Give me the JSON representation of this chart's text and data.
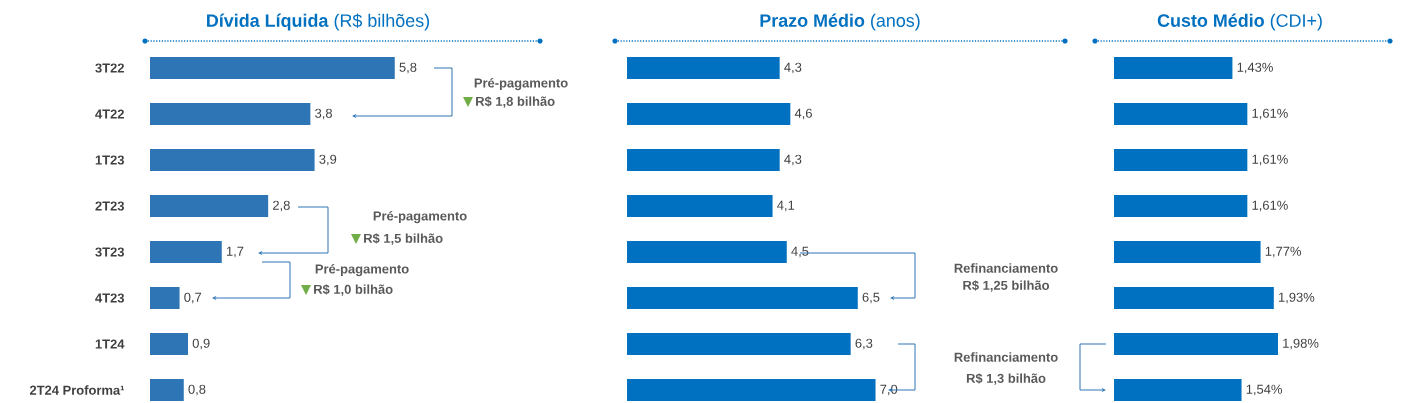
{
  "chart_data": [
    {
      "type": "bar",
      "orientation": "horizontal",
      "title": "**Dívida Líquida** (R$ bilhões)",
      "categories": [
        "3T22",
        "4T22",
        "1T23",
        "2T23",
        "3T23",
        "4T23",
        "1T24",
        "2T24 Proforma¹"
      ],
      "values": [
        5.8,
        3.8,
        3.9,
        2.8,
        1.7,
        0.7,
        0.9,
        0.8
      ],
      "value_labels": [
        "5,8",
        "3,8",
        "3,9",
        "2,8",
        "1,7",
        "0,7",
        "0,9",
        "0,8"
      ],
      "color": "#2e75b6",
      "tick_labels": "y",
      "annotations": [
        "Pré-pagamento",
        "R$ 1,8 bilhão",
        "Pré-pagamento",
        "R$ 1,5 bilhão",
        "Pré-pagamento",
        "R$ 1,0 bilhão"
      ]
    },
    {
      "type": "bar",
      "orientation": "horizontal",
      "title": "**Prazo Médio** (anos)",
      "categories": [
        null,
        null,
        null,
        null,
        null,
        null,
        null,
        null
      ],
      "values": [
        4.3,
        4.6,
        4.3,
        4.1,
        4.5,
        6.5,
        6.3,
        7.0
      ],
      "value_labels": [
        "4,3",
        "4,6",
        "4,3",
        "4,1",
        "4,5",
        "6,5",
        "6,3",
        "7,0"
      ],
      "color": "#0070c0",
      "annotations": [
        "Refinanciamento",
        "R$ 1,25 bilhão",
        "Refinanciamento",
        "R$ 1,3 bilhão"
      ]
    },
    {
      "type": "bar",
      "orientation": "horizontal",
      "title": "**Custo Médio** (CDI+)",
      "categories": [
        null,
        null,
        null,
        null,
        null,
        null,
        null,
        null
      ],
      "values": [
        1.43,
        1.61,
        1.61,
        1.61,
        1.77,
        1.93,
        1.98,
        1.54
      ],
      "value_labels": [
        "1,43%",
        "1,61%",
        "1,61%",
        "1,61%",
        "1,77%",
        "1,93%",
        "1,98%",
        "1,54%"
      ],
      "color": "#0070c0"
    }
  ]
}
